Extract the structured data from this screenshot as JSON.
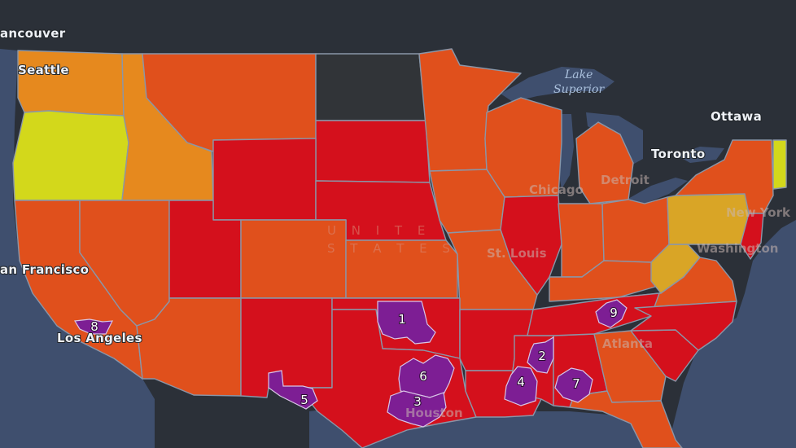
{
  "colors": {
    "background_land": "#2b3038",
    "water": "#3f4f6e",
    "border": "#8a96a8",
    "no_data": "#313438",
    "very_high": "#d4101c",
    "high": "#e0501c",
    "elevated": "#e6891e",
    "moderate": "#d9a526",
    "low": "#d3d81b",
    "hotspot": "#7d1e94"
  },
  "map": {
    "country_label_line1": "U N I T E",
    "country_label_line2": "S T A T E S",
    "water_bodies": [
      {
        "id": "lake-superior-line1",
        "label": "Lake"
      },
      {
        "id": "lake-superior-line2",
        "label": "Superior"
      }
    ],
    "cities": [
      {
        "id": "vancouver",
        "label": "ancouver"
      },
      {
        "id": "seattle",
        "label": "Seattle"
      },
      {
        "id": "san-francisco",
        "label": "an Francisco"
      },
      {
        "id": "los-angeles",
        "label": "Los Angeles"
      },
      {
        "id": "ottawa",
        "label": "Ottawa"
      },
      {
        "id": "toronto",
        "label": "Toronto"
      },
      {
        "id": "detroit",
        "label": "Detroit"
      },
      {
        "id": "chicago",
        "label": "Chicago"
      },
      {
        "id": "st-louis",
        "label": "St. Louis"
      },
      {
        "id": "new-york",
        "label": "New York"
      },
      {
        "id": "washington",
        "label": "Washington"
      },
      {
        "id": "atlanta",
        "label": "Atlanta"
      },
      {
        "id": "houston",
        "label": "Houston"
      }
    ],
    "hotspots": [
      {
        "id": "1",
        "label": "1"
      },
      {
        "id": "2",
        "label": "2"
      },
      {
        "id": "3",
        "label": "3"
      },
      {
        "id": "4",
        "label": "4"
      },
      {
        "id": "5",
        "label": "5"
      },
      {
        "id": "6",
        "label": "6"
      },
      {
        "id": "7",
        "label": "7"
      },
      {
        "id": "8",
        "label": "8"
      },
      {
        "id": "9",
        "label": "9"
      }
    ],
    "states": [
      {
        "name": "Washington",
        "level": "elevated"
      },
      {
        "name": "Oregon",
        "level": "low"
      },
      {
        "name": "Idaho",
        "level": "elevated"
      },
      {
        "name": "Montana",
        "level": "high"
      },
      {
        "name": "North Dakota",
        "level": "no_data"
      },
      {
        "name": "South Dakota",
        "level": "very_high"
      },
      {
        "name": "Wyoming",
        "level": "very_high"
      },
      {
        "name": "Nebraska",
        "level": "very_high"
      },
      {
        "name": "Minnesota",
        "level": "high"
      },
      {
        "name": "Wisconsin",
        "level": "high"
      },
      {
        "name": "Michigan",
        "level": "high"
      },
      {
        "name": "Iowa",
        "level": "high"
      },
      {
        "name": "Illinois",
        "level": "very_high"
      },
      {
        "name": "California",
        "level": "high"
      },
      {
        "name": "Nevada",
        "level": "high"
      },
      {
        "name": "Utah",
        "level": "very_high"
      },
      {
        "name": "Colorado",
        "level": "high"
      },
      {
        "name": "Kansas",
        "level": "high"
      },
      {
        "name": "Missouri",
        "level": "high"
      },
      {
        "name": "Indiana",
        "level": "high"
      },
      {
        "name": "Ohio",
        "level": "high"
      },
      {
        "name": "Kentucky",
        "level": "high"
      },
      {
        "name": "West Virginia",
        "level": "moderate"
      },
      {
        "name": "Virginia",
        "level": "high"
      },
      {
        "name": "Pennsylvania",
        "level": "moderate"
      },
      {
        "name": "New York",
        "level": "high"
      },
      {
        "name": "New Jersey",
        "level": "very_high"
      },
      {
        "name": "Arizona",
        "level": "high"
      },
      {
        "name": "New Mexico",
        "level": "very_high"
      },
      {
        "name": "Oklahoma",
        "level": "very_high"
      },
      {
        "name": "Texas",
        "level": "very_high"
      },
      {
        "name": "Arkansas",
        "level": "very_high"
      },
      {
        "name": "Louisiana",
        "level": "very_high"
      },
      {
        "name": "Mississippi",
        "level": "very_high"
      },
      {
        "name": "Alabama",
        "level": "very_high"
      },
      {
        "name": "Tennessee",
        "level": "very_high"
      },
      {
        "name": "Georgia",
        "level": "high"
      },
      {
        "name": "Florida",
        "level": "high"
      },
      {
        "name": "South Carolina",
        "level": "very_high"
      },
      {
        "name": "North Carolina",
        "level": "very_high"
      },
      {
        "name": "Vermont",
        "level": "low"
      }
    ]
  }
}
